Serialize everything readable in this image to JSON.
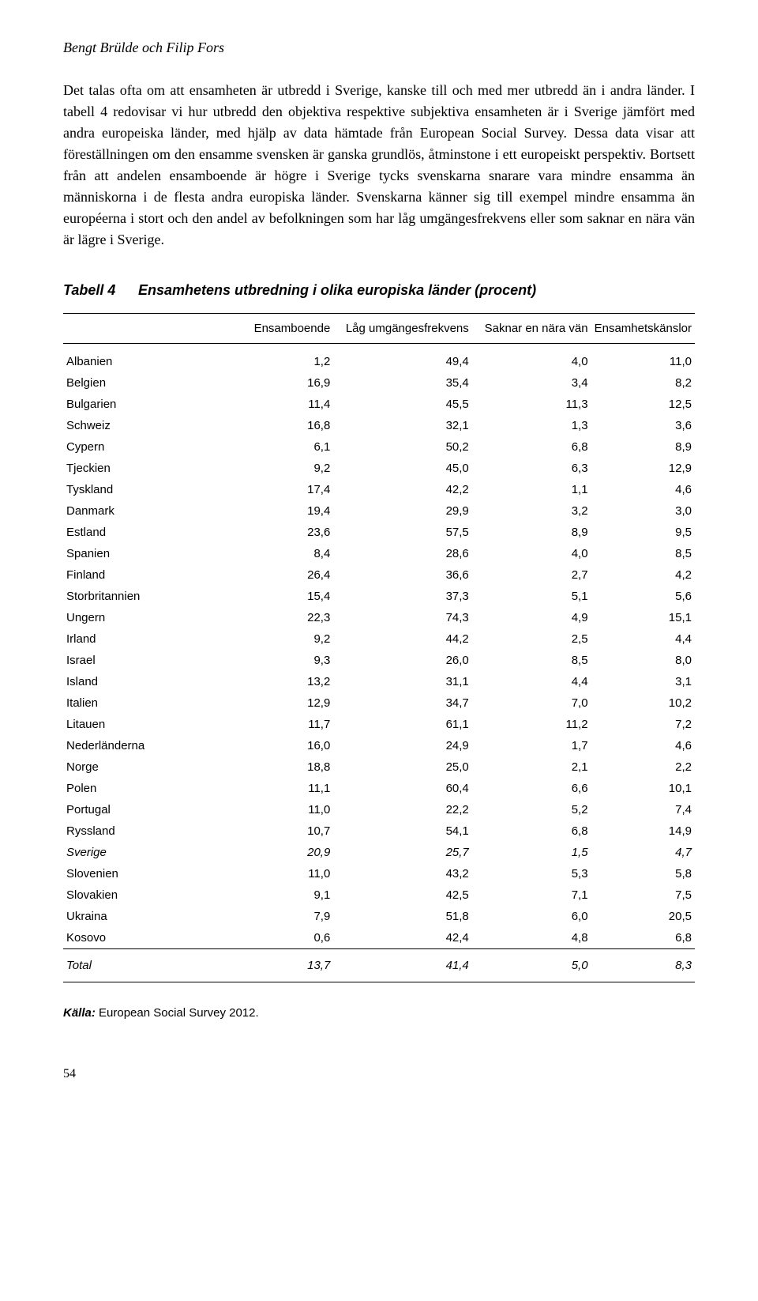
{
  "header": {
    "author": "Bengt Brülde och Filip Fors"
  },
  "paragraph": "Det talas ofta om att ensamheten är utbredd i Sverige, kanske till och med mer utbredd än i andra länder. I tabell 4 redovisar vi hur utbredd den objektiva respektive subjektiva ensamheten är i Sverige jämfört med andra europeiska länder, med hjälp av data hämtade från European Social Survey. Dessa data visar att föreställningen om den ensamme svensken är ganska grundlös, åtminstone i ett europeiskt perspektiv. Bortsett från att andelen ensamboende är högre i Sverige tycks svenskarna snarare vara mindre ensamma än människorna i de flesta andra europiska länder. Svenskarna känner sig till exempel mindre ensamma än européerna i stort och den andel av befolkningen som har låg umgängesfrekvens eller som saknar en nära vän är lägre i Sverige.",
  "table": {
    "label": "Tabell 4",
    "title": "Ensamhetens utbredning i olika europiska länder (procent)",
    "columns": [
      "",
      "Ensamboende",
      "Låg umgängesfrekvens",
      "Saknar en nära vän",
      "Ensamhetskänslor"
    ],
    "rows": [
      {
        "cells": [
          "Albanien",
          "1,2",
          "49,4",
          "4,0",
          "11,0"
        ],
        "italic": false
      },
      {
        "cells": [
          "Belgien",
          "16,9",
          "35,4",
          "3,4",
          "8,2"
        ],
        "italic": false
      },
      {
        "cells": [
          "Bulgarien",
          "11,4",
          "45,5",
          "11,3",
          "12,5"
        ],
        "italic": false
      },
      {
        "cells": [
          "Schweiz",
          "16,8",
          "32,1",
          "1,3",
          "3,6"
        ],
        "italic": false
      },
      {
        "cells": [
          "Cypern",
          "6,1",
          "50,2",
          "6,8",
          "8,9"
        ],
        "italic": false
      },
      {
        "cells": [
          "Tjeckien",
          "9,2",
          "45,0",
          "6,3",
          "12,9"
        ],
        "italic": false
      },
      {
        "cells": [
          "Tyskland",
          "17,4",
          "42,2",
          "1,1",
          "4,6"
        ],
        "italic": false
      },
      {
        "cells": [
          "Danmark",
          "19,4",
          "29,9",
          "3,2",
          "3,0"
        ],
        "italic": false
      },
      {
        "cells": [
          "Estland",
          "23,6",
          "57,5",
          "8,9",
          "9,5"
        ],
        "italic": false
      },
      {
        "cells": [
          "Spanien",
          "8,4",
          "28,6",
          "4,0",
          "8,5"
        ],
        "italic": false
      },
      {
        "cells": [
          "Finland",
          "26,4",
          "36,6",
          "2,7",
          "4,2"
        ],
        "italic": false
      },
      {
        "cells": [
          "Storbritannien",
          "15,4",
          "37,3",
          "5,1",
          "5,6"
        ],
        "italic": false
      },
      {
        "cells": [
          "Ungern",
          "22,3",
          "74,3",
          "4,9",
          "15,1"
        ],
        "italic": false
      },
      {
        "cells": [
          "Irland",
          "9,2",
          "44,2",
          "2,5",
          "4,4"
        ],
        "italic": false
      },
      {
        "cells": [
          "Israel",
          "9,3",
          "26,0",
          "8,5",
          "8,0"
        ],
        "italic": false
      },
      {
        "cells": [
          "Island",
          "13,2",
          "31,1",
          "4,4",
          "3,1"
        ],
        "italic": false
      },
      {
        "cells": [
          "Italien",
          "12,9",
          "34,7",
          "7,0",
          "10,2"
        ],
        "italic": false
      },
      {
        "cells": [
          "Litauen",
          "11,7",
          "61,1",
          "11,2",
          "7,2"
        ],
        "italic": false
      },
      {
        "cells": [
          "Nederländerna",
          "16,0",
          "24,9",
          "1,7",
          "4,6"
        ],
        "italic": false
      },
      {
        "cells": [
          "Norge",
          "18,8",
          "25,0",
          "2,1",
          "2,2"
        ],
        "italic": false
      },
      {
        "cells": [
          "Polen",
          "11,1",
          "60,4",
          "6,6",
          "10,1"
        ],
        "italic": false
      },
      {
        "cells": [
          "Portugal",
          "11,0",
          "22,2",
          "5,2",
          "7,4"
        ],
        "italic": false
      },
      {
        "cells": [
          "Ryssland",
          "10,7",
          "54,1",
          "6,8",
          "14,9"
        ],
        "italic": false
      },
      {
        "cells": [
          "Sverige",
          "20,9",
          "25,7",
          "1,5",
          "4,7"
        ],
        "italic": true
      },
      {
        "cells": [
          "Slovenien",
          "11,0",
          "43,2",
          "5,3",
          "5,8"
        ],
        "italic": false
      },
      {
        "cells": [
          "Slovakien",
          "9,1",
          "42,5",
          "7,1",
          "7,5"
        ],
        "italic": false
      },
      {
        "cells": [
          "Ukraina",
          "7,9",
          "51,8",
          "6,0",
          "20,5"
        ],
        "italic": false
      },
      {
        "cells": [
          "Kosovo",
          "0,6",
          "42,4",
          "4,8",
          "6,8"
        ],
        "italic": false
      }
    ],
    "footer": [
      "Total",
      "13,7",
      "41,4",
      "5,0",
      "8,3"
    ]
  },
  "source": {
    "label": "Källa:",
    "text": " European Social Survey 2012."
  },
  "page": "54",
  "style": {
    "body_font": "Georgia",
    "table_font": "Arial",
    "text_color": "#000000",
    "bg_color": "#ffffff",
    "body_fontsize": 18,
    "table_fontsize": 15,
    "caption_fontsize": 18,
    "border_color": "#000000"
  }
}
